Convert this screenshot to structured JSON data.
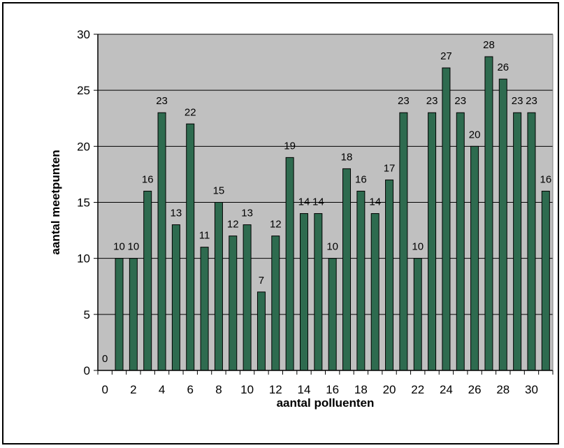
{
  "chart_data": {
    "type": "bar",
    "title": "",
    "xlabel": "aantal polluenten",
    "ylabel": "aantal meetpunten",
    "x": [
      0,
      1,
      2,
      3,
      4,
      5,
      6,
      7,
      8,
      9,
      10,
      11,
      12,
      13,
      14,
      15,
      16,
      17,
      18,
      19,
      20,
      21,
      22,
      23,
      24,
      25,
      26,
      27,
      28,
      29,
      30,
      31
    ],
    "values": [
      0,
      10,
      10,
      16,
      23,
      13,
      22,
      11,
      15,
      12,
      13,
      7,
      12,
      19,
      14,
      14,
      10,
      18,
      16,
      14,
      17,
      23,
      10,
      23,
      27,
      23,
      20,
      28,
      26,
      23,
      23,
      16
    ],
    "xticks": [
      "0",
      "2",
      "4",
      "6",
      "8",
      "10",
      "12",
      "14",
      "16",
      "18",
      "20",
      "22",
      "24",
      "26",
      "28",
      "30"
    ],
    "yticks": [
      "0",
      "5",
      "10",
      "15",
      "20",
      "25",
      "30"
    ],
    "ylim": [
      0,
      30
    ],
    "grid": true,
    "legend": "none",
    "colors": {
      "bar_fill": "#2e6b4f",
      "bar_stroke": "#000000",
      "plot_background": "#c0c0c0",
      "gridline": "#000000"
    }
  }
}
